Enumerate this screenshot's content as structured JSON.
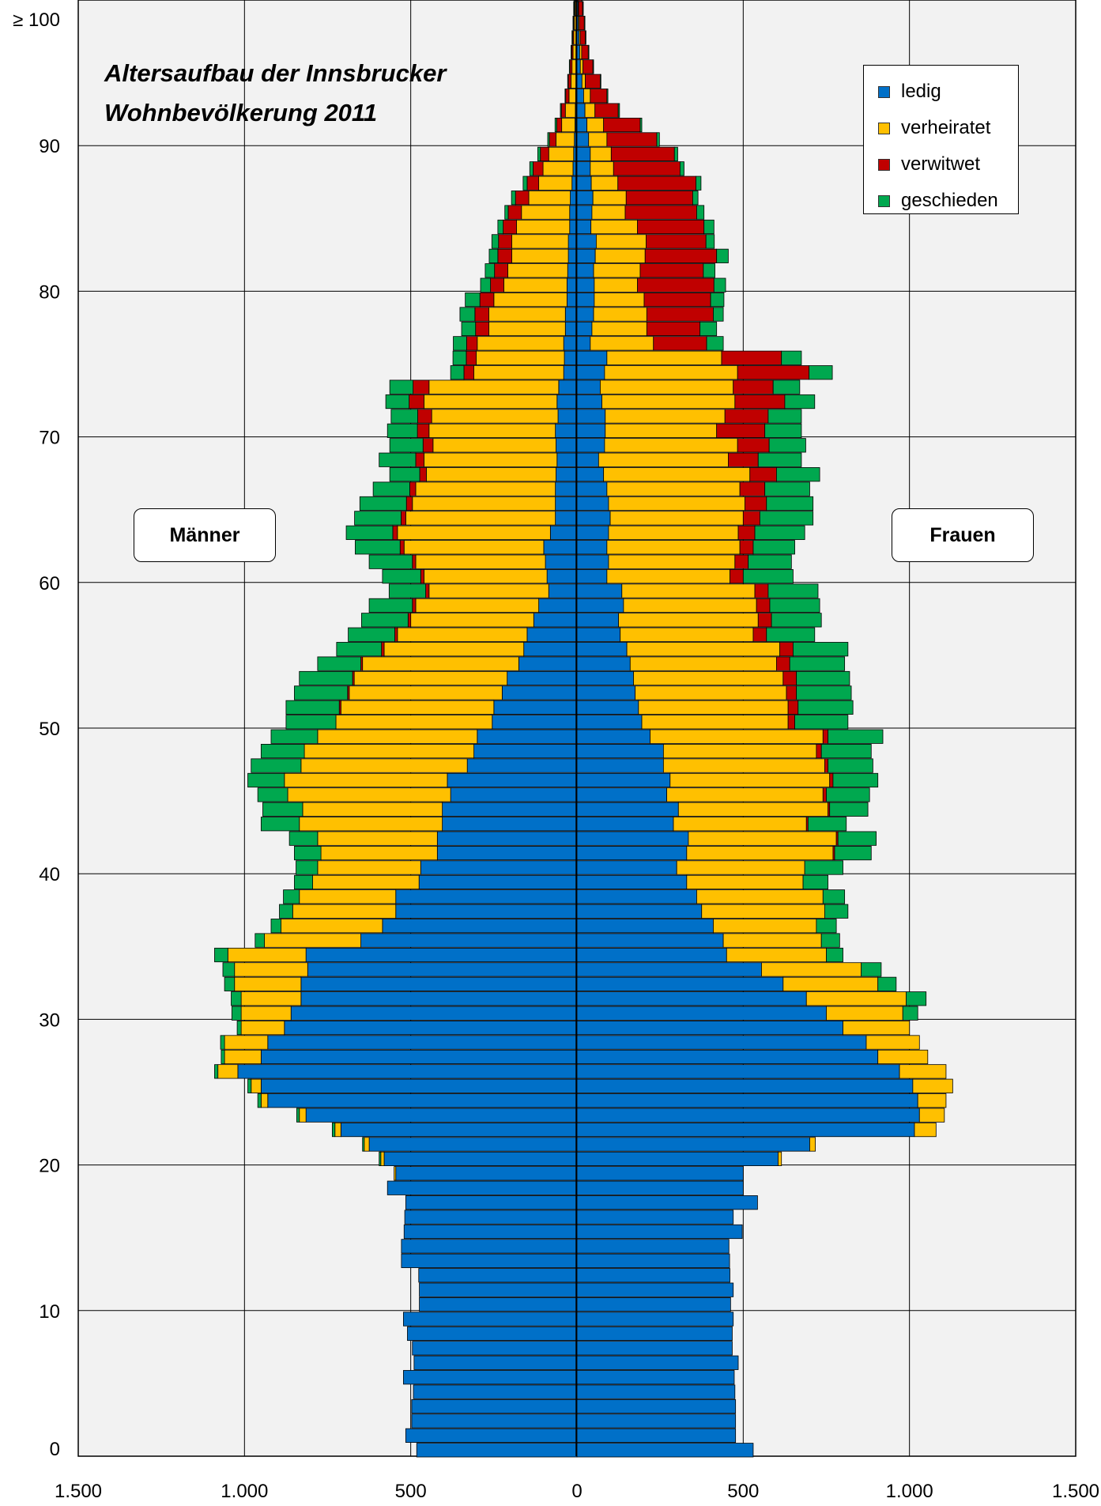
{
  "chart_data": {
    "type": "bar",
    "orientation": "horizontal-population-pyramid",
    "title": [
      "Altersaufbau der Innsbrucker",
      "Wohnbevölkerung 2011"
    ],
    "left_label": "Männer",
    "right_label": "Frauen",
    "xlim": [
      -1500,
      1500
    ],
    "ylim": [
      0,
      100
    ],
    "x_ticks": [
      -1500,
      -1000,
      -500,
      0,
      500,
      1000,
      1500
    ],
    "x_tick_labels": [
      "1.500",
      "1.000",
      "500",
      "0",
      "500",
      "1.000",
      "1.500"
    ],
    "y_ticks": [
      0,
      10,
      20,
      30,
      40,
      50,
      60,
      70,
      80,
      90,
      100
    ],
    "y_tick_labels": [
      "0",
      "10",
      "20",
      "30",
      "40",
      "50",
      "60",
      "70",
      "80",
      "90",
      "≥ 100"
    ],
    "grid": true,
    "legend_position": "top-right",
    "categories": [
      {
        "name": "ledig",
        "color": "#0070c8"
      },
      {
        "name": "verheiratet",
        "color": "#ffc000"
      },
      {
        "name": "verwitwet",
        "color": "#c00000"
      },
      {
        "name": "geschieden",
        "color": "#00a84f"
      }
    ],
    "ages": [
      0,
      1,
      2,
      3,
      4,
      5,
      6,
      7,
      8,
      9,
      10,
      11,
      12,
      13,
      14,
      15,
      16,
      17,
      18,
      19,
      20,
      21,
      22,
      23,
      24,
      25,
      26,
      27,
      28,
      29,
      30,
      31,
      32,
      33,
      34,
      35,
      36,
      37,
      38,
      39,
      40,
      41,
      42,
      43,
      44,
      45,
      46,
      47,
      48,
      49,
      50,
      51,
      52,
      53,
      54,
      55,
      56,
      57,
      58,
      59,
      60,
      61,
      62,
      63,
      64,
      65,
      66,
      67,
      68,
      69,
      70,
      71,
      72,
      73,
      74,
      75,
      76,
      77,
      78,
      79,
      80,
      81,
      82,
      83,
      84,
      85,
      86,
      87,
      88,
      89,
      90,
      91,
      92,
      93,
      94,
      95,
      96,
      97,
      98,
      99,
      100
    ],
    "men": {
      "ledig": [
        482,
        515,
        497,
        497,
        492,
        522,
        490,
        495,
        510,
        522,
        474,
        474,
        476,
        528,
        528,
        520,
        518,
        515,
        570,
        545,
        580,
        625,
        710,
        815,
        930,
        950,
        1020,
        950,
        930,
        880,
        860,
        830,
        830,
        810,
        815,
        650,
        585,
        545,
        545,
        475,
        470,
        420,
        420,
        405,
        405,
        380,
        390,
        330,
        310,
        300,
        255,
        250,
        225,
        210,
        175,
        160,
        150,
        130,
        115,
        85,
        90,
        95,
        100,
        80,
        65,
        65,
        65,
        63,
        60,
        63,
        65,
        57,
        60,
        55,
        40,
        38,
        40,
        35,
        35,
        30,
        30,
        28,
        26,
        26,
        22,
        22,
        20,
        15,
        12,
        10,
        8,
        6,
        5,
        4,
        3,
        3,
        2,
        2,
        2,
        2,
        2
      ],
      "verheiratet": [
        0,
        0,
        0,
        0,
        0,
        0,
        0,
        0,
        0,
        0,
        0,
        0,
        0,
        0,
        0,
        0,
        0,
        0,
        0,
        5,
        10,
        15,
        18,
        20,
        20,
        30,
        60,
        110,
        130,
        130,
        150,
        180,
        200,
        220,
        235,
        290,
        305,
        310,
        290,
        320,
        310,
        350,
        360,
        430,
        420,
        490,
        490,
        500,
        510,
        480,
        470,
        460,
        460,
        460,
        470,
        420,
        390,
        370,
        370,
        360,
        370,
        390,
        420,
        460,
        450,
        430,
        420,
        390,
        400,
        370,
        380,
        380,
        400,
        390,
        270,
        265,
        260,
        230,
        230,
        220,
        190,
        180,
        170,
        170,
        160,
        145,
        125,
        100,
        90,
        75,
        55,
        40,
        30,
        20,
        15,
        12,
        10,
        8,
        6,
        4,
        3
      ],
      "verwitwet": [
        0,
        0,
        0,
        0,
        0,
        0,
        0,
        0,
        0,
        0,
        0,
        0,
        0,
        0,
        0,
        0,
        0,
        0,
        0,
        0,
        0,
        0,
        0,
        0,
        0,
        0,
        0,
        0,
        0,
        0,
        0,
        0,
        0,
        0,
        0,
        0,
        0,
        0,
        0,
        0,
        0,
        0,
        0,
        0,
        0,
        0,
        0,
        0,
        0,
        0,
        0,
        5,
        5,
        5,
        5,
        8,
        8,
        8,
        10,
        10,
        10,
        10,
        12,
        14,
        14,
        18,
        18,
        20,
        25,
        30,
        35,
        42,
        45,
        48,
        30,
        30,
        32,
        40,
        42,
        42,
        40,
        40,
        42,
        40,
        40,
        40,
        40,
        35,
        30,
        25,
        20,
        15,
        12,
        10,
        8,
        6,
        4,
        3,
        2,
        2,
        2
      ],
      "geschieden": [
        0,
        0,
        0,
        0,
        0,
        0,
        0,
        0,
        0,
        0,
        0,
        0,
        0,
        0,
        0,
        0,
        0,
        0,
        0,
        0,
        5,
        5,
        8,
        8,
        10,
        10,
        10,
        10,
        12,
        12,
        28,
        30,
        30,
        35,
        40,
        28,
        30,
        40,
        48,
        55,
        65,
        80,
        85,
        115,
        120,
        90,
        110,
        150,
        130,
        140,
        150,
        160,
        160,
        160,
        130,
        135,
        140,
        140,
        130,
        110,
        115,
        130,
        135,
        140,
        140,
        140,
        110,
        90,
        110,
        100,
        90,
        80,
        70,
        70,
        40,
        40,
        40,
        42,
        45,
        44,
        30,
        28,
        26,
        20,
        16,
        10,
        12,
        12,
        10,
        8,
        5,
        5,
        3,
        2,
        2,
        2,
        2,
        2,
        2,
        2,
        2
      ]
    },
    "women": {
      "ledig": [
        530,
        477,
        477,
        477,
        475,
        473,
        485,
        467,
        467,
        470,
        462,
        470,
        460,
        459,
        457,
        497,
        470,
        543,
        500,
        500,
        605,
        700,
        1015,
        1030,
        1025,
        1010,
        970,
        905,
        870,
        800,
        750,
        690,
        620,
        555,
        450,
        440,
        410,
        375,
        360,
        330,
        300,
        330,
        335,
        290,
        305,
        270,
        280,
        260,
        260,
        220,
        195,
        185,
        175,
        170,
        160,
        150,
        130,
        125,
        140,
        135,
        90,
        95,
        90,
        95,
        100,
        95,
        90,
        80,
        65,
        83,
        85,
        85,
        75,
        70,
        83,
        90,
        40,
        45,
        50,
        52,
        52,
        50,
        55,
        58,
        42,
        45,
        48,
        43,
        40,
        40,
        35,
        30,
        24,
        20,
        15,
        10,
        8,
        6,
        4,
        3,
        2
      ],
      "verheiratet": [
        0,
        0,
        0,
        0,
        0,
        0,
        0,
        0,
        0,
        0,
        0,
        0,
        0,
        0,
        0,
        0,
        0,
        0,
        0,
        0,
        10,
        17,
        65,
        75,
        85,
        120,
        140,
        150,
        160,
        200,
        230,
        300,
        285,
        300,
        300,
        295,
        310,
        370,
        380,
        350,
        385,
        440,
        445,
        400,
        450,
        470,
        480,
        485,
        460,
        520,
        440,
        450,
        455,
        450,
        440,
        460,
        400,
        420,
        400,
        400,
        370,
        380,
        400,
        390,
        400,
        410,
        400,
        440,
        390,
        400,
        335,
        360,
        400,
        400,
        400,
        345,
        190,
        165,
        160,
        150,
        130,
        140,
        150,
        150,
        140,
        100,
        100,
        80,
        70,
        63,
        55,
        50,
        30,
        20,
        10,
        8,
        6,
        4,
        3,
        2,
        2
      ],
      "verwitwet": [
        0,
        0,
        0,
        0,
        0,
        0,
        0,
        0,
        0,
        0,
        0,
        0,
        0,
        0,
        0,
        0,
        0,
        0,
        0,
        0,
        0,
        0,
        0,
        0,
        0,
        0,
        0,
        0,
        0,
        0,
        0,
        0,
        0,
        0,
        0,
        0,
        0,
        0,
        0,
        0,
        0,
        5,
        5,
        5,
        5,
        10,
        10,
        10,
        15,
        15,
        20,
        30,
        30,
        40,
        40,
        40,
        40,
        40,
        40,
        40,
        40,
        40,
        40,
        50,
        50,
        65,
        75,
        80,
        90,
        95,
        145,
        130,
        150,
        120,
        215,
        180,
        160,
        160,
        200,
        200,
        230,
        190,
        215,
        180,
        200,
        215,
        200,
        235,
        200,
        190,
        150,
        110,
        70,
        50,
        45,
        30,
        20,
        15,
        15,
        12,
        10
      ],
      "geschieden": [
        0,
        0,
        0,
        0,
        0,
        0,
        0,
        0,
        0,
        0,
        0,
        0,
        0,
        0,
        0,
        0,
        0,
        0,
        0,
        0,
        0,
        0,
        0,
        0,
        0,
        0,
        0,
        0,
        0,
        0,
        45,
        60,
        55,
        60,
        50,
        55,
        60,
        70,
        65,
        75,
        115,
        110,
        115,
        115,
        115,
        130,
        135,
        135,
        150,
        165,
        160,
        165,
        165,
        160,
        165,
        165,
        145,
        150,
        150,
        150,
        150,
        130,
        125,
        150,
        160,
        140,
        135,
        130,
        130,
        110,
        110,
        100,
        90,
        80,
        70,
        60,
        50,
        50,
        30,
        40,
        35,
        35,
        35,
        25,
        30,
        22,
        16,
        15,
        12,
        10,
        8,
        5,
        4,
        3,
        2,
        2,
        2,
        2,
        2,
        2,
        2
      ]
    }
  }
}
